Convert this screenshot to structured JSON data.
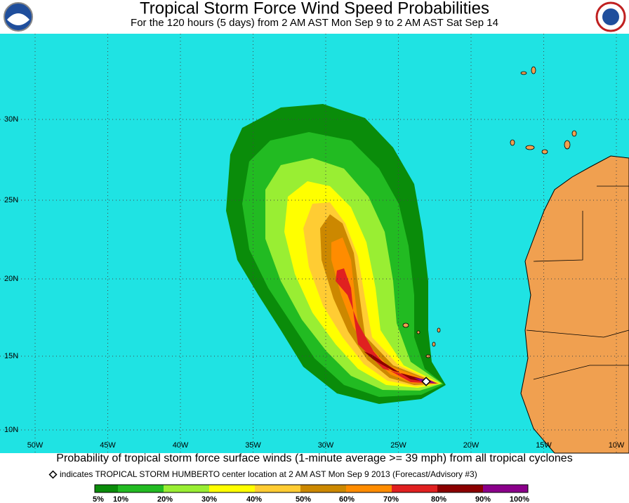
{
  "header": {
    "title": "Tropical Storm Force Wind Speed Probabilities",
    "subtitle": "For the 120 hours (5 days) from 2 AM AST Mon Sep 9 to 2 AM AST Sat Sep 14"
  },
  "map": {
    "lat_labels": [
      "30N",
      "25N",
      "20N",
      "15N",
      "10N"
    ],
    "lon_labels": [
      "50W",
      "45W",
      "40W",
      "35W",
      "30W",
      "25W",
      "20W",
      "15W",
      "10W"
    ]
  },
  "footer": {
    "caption": "Probability of tropical storm force surface winds (1-minute average >= 39 mph) from all tropical cyclones",
    "note": "indicates TROPICAL STORM HUMBERTO center location at 2 AM AST Mon Sep 9 2013 (Forecast/Advisory #3)",
    "legend": [
      "5%",
      "10%",
      "20%",
      "30%",
      "40%",
      "50%",
      "60%",
      "70%",
      "80%",
      "90%",
      "100%"
    ]
  }
}
